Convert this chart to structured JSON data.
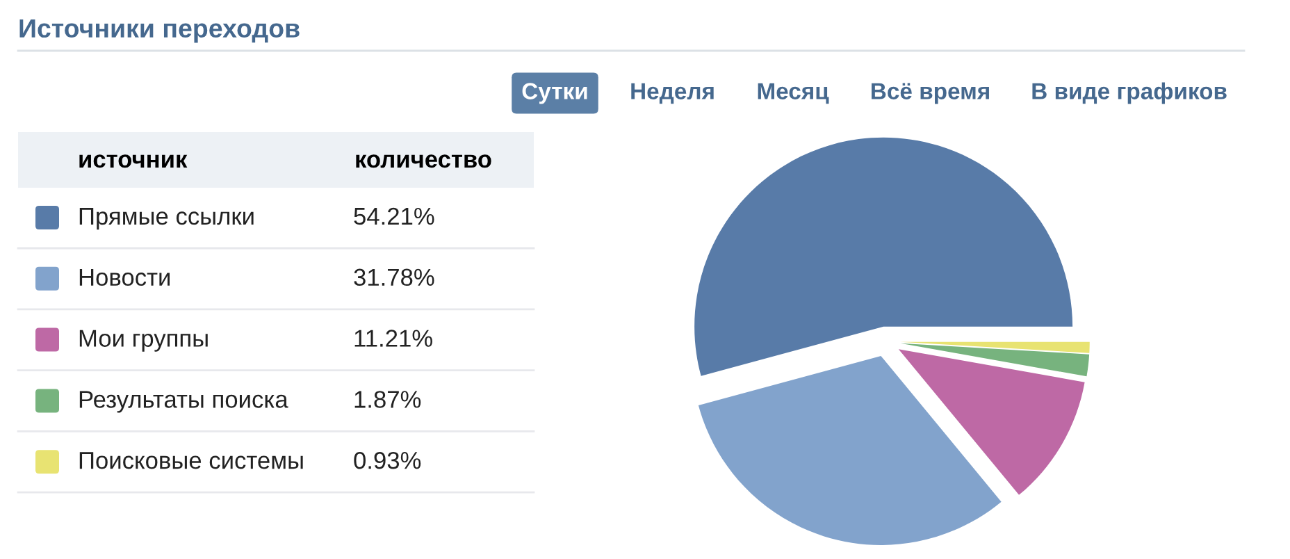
{
  "chart_data": {
    "type": "pie",
    "title": "Источники переходов",
    "categories": [
      "Прямые ссылки",
      "Новости",
      "Мои группы",
      "Результаты поиска",
      "Поисковые системы"
    ],
    "values": [
      54.21,
      31.78,
      11.21,
      1.87,
      0.93
    ],
    "colors": [
      "#587ba8",
      "#82a3cc",
      "#be69a5",
      "#77b37e",
      "#e8e372"
    ],
    "value_labels": [
      "54.21%",
      "31.78%",
      "11.21%",
      "1.87%",
      "0.93%"
    ],
    "legend": "left",
    "legend_title": "источник",
    "annotations": [
      "количество",
      "Сутки",
      "Неделя",
      "Месяц",
      "Всё время",
      "В виде графиков"
    ]
  }
}
